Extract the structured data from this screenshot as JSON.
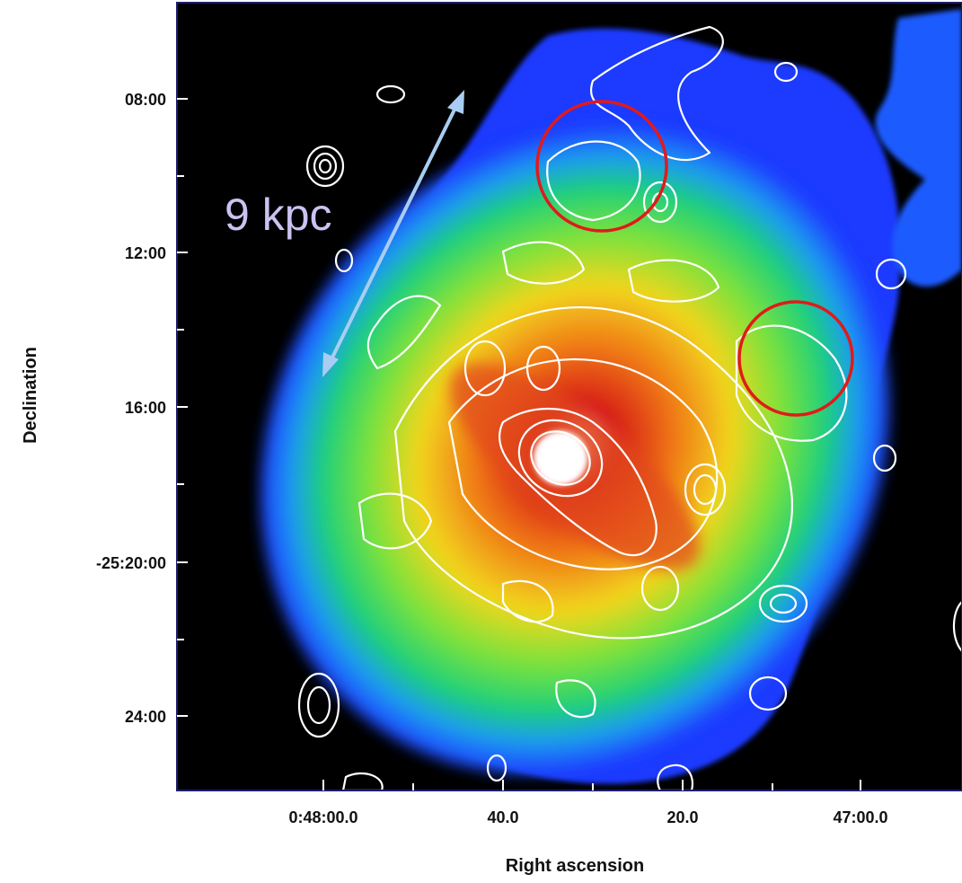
{
  "figure": {
    "y_axis_title": "Declination",
    "x_axis_title": "Right ascension",
    "y_ticks": [
      "08:00",
      "12:00",
      "16:00",
      "-25:20:00",
      "24:00"
    ],
    "x_ticks": [
      "0:48:00.0",
      "40.0",
      "20.0",
      "47:00.0"
    ],
    "scale_annotation": "9 kpc",
    "colors": {
      "background": "#000000",
      "frame": "#1a1f6e",
      "contour": "#ffffff",
      "circle_markers": "#e11a1a",
      "scale_arrow": "#a9cdf2",
      "colormap": [
        "#1a1aff",
        "#1e7bff",
        "#22c7e8",
        "#2edc6a",
        "#b6e83a",
        "#f2d21a",
        "#f08a18",
        "#d81a10",
        "#ffffff"
      ]
    }
  }
}
